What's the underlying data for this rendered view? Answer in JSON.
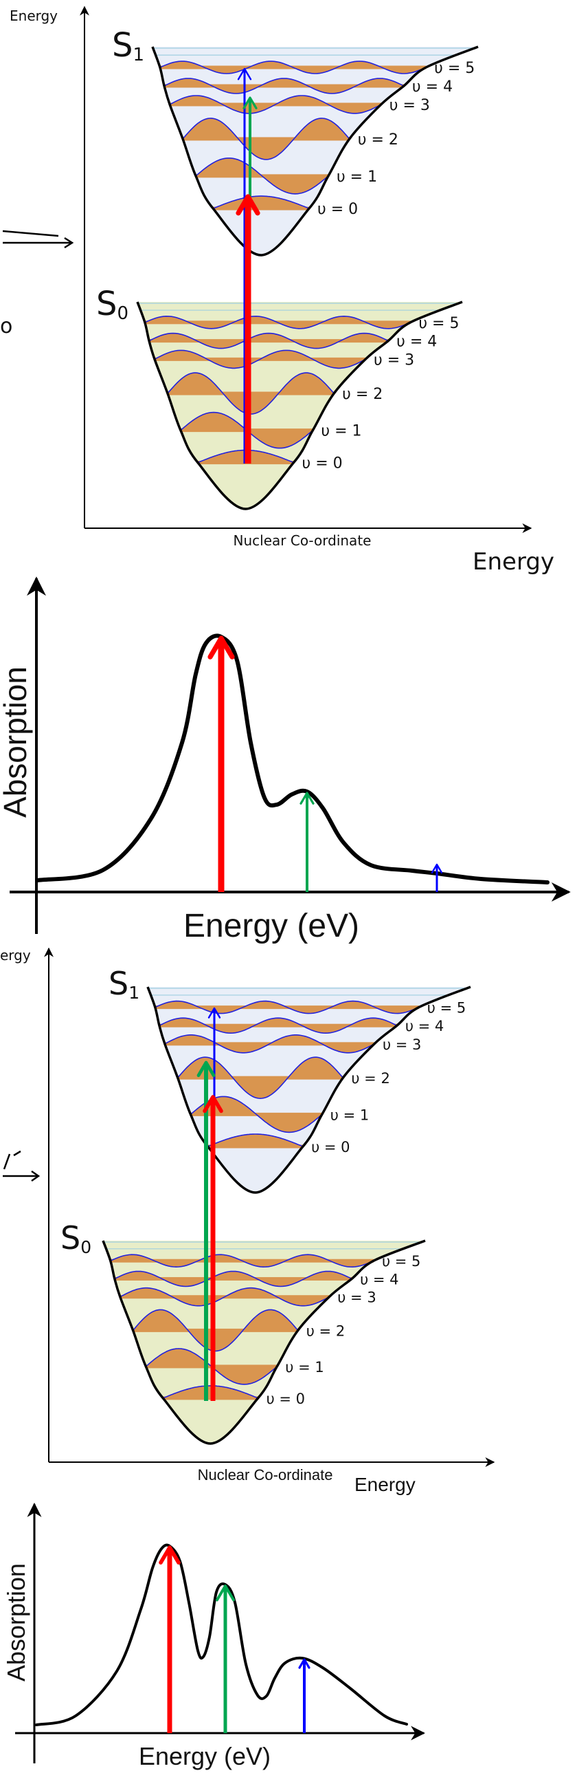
{
  "diagram_top": {
    "y_axis_label": "Energy",
    "x_axis_label": "Nuclear Co-ordinate",
    "overflow_label": "Energy",
    "left_fragments": [
      "o",
      "ı"
    ],
    "excited_state": {
      "symbol": "S",
      "subscript": "1"
    },
    "ground_state": {
      "symbol": "S",
      "subscript": "0"
    },
    "vib_labels": [
      "υ = 0",
      "υ = 1",
      "υ = 2",
      "υ = 3",
      "υ = 4",
      "υ = 5"
    ]
  },
  "spectrum_top": {
    "y_axis_label": "Absorption",
    "x_axis_label": "Energy (eV)"
  },
  "diagram_bottom": {
    "y_axis_label": "ergy",
    "x_axis_label": "Nuclear Co-ordinate",
    "overflow_label": "Energy",
    "excited_state": {
      "symbol": "S",
      "subscript": "1"
    },
    "ground_state": {
      "symbol": "S",
      "subscript": "0"
    },
    "vib_labels": [
      "υ = 0",
      "υ = 1",
      "υ = 2",
      "υ = 3",
      "υ = 4",
      "υ = 5"
    ]
  },
  "spectrum_bottom": {
    "y_axis_label": "Absorption",
    "x_axis_label": "Energy (eV)"
  },
  "colors": {
    "excited_fill": "#e9eef8",
    "ground_fill": "#e8edc8",
    "wavefunction_fill": "#d9954f",
    "wavefunction_line": "#2222dd",
    "continuum_line": "#9fcfe0",
    "arrow_0_0": "#ff0000",
    "arrow_0_1": "#00a650",
    "arrow_0_2": "#0000ff"
  }
}
